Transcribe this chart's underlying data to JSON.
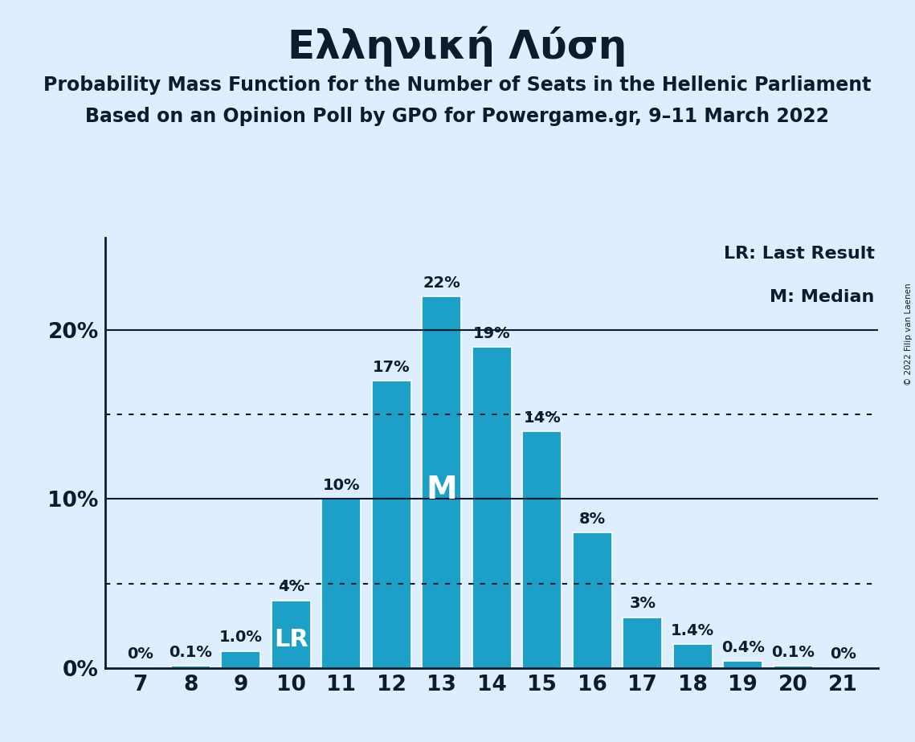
{
  "title": "Ελληνική Λύση",
  "subtitle1": "Probability Mass Function for the Number of Seats in the Hellenic Parliament",
  "subtitle2": "Based on an Opinion Poll by GPO for Powergame.gr, 9–11 March 2022",
  "copyright": "© 2022 Filip van Laenen",
  "legend_lr": "LR: Last Result",
  "legend_m": "M: Median",
  "seats": [
    7,
    8,
    9,
    10,
    11,
    12,
    13,
    14,
    15,
    16,
    17,
    18,
    19,
    20,
    21
  ],
  "probabilities": [
    0.0,
    0.1,
    1.0,
    4.0,
    10.0,
    17.0,
    22.0,
    19.0,
    14.0,
    8.0,
    3.0,
    1.4,
    0.4,
    0.1,
    0.0
  ],
  "bar_color": "#1ca0c8",
  "background_color": "#ddeeff",
  "text_color": "#0d1b2e",
  "ylabel_ticks": [
    0,
    10,
    20
  ],
  "ylabel_labels": [
    "0%",
    "10%",
    "20%"
  ],
  "solid_lines": [
    10.0,
    20.0
  ],
  "dotted_lines": [
    5.0,
    15.0
  ],
  "lr_seat": 10,
  "median_seat": 13,
  "ylim": [
    0,
    25.5
  ],
  "bar_labels": [
    "0%",
    "0.1%",
    "1.0%",
    "4%",
    "10%",
    "17%",
    "22%",
    "19%",
    "14%",
    "8%",
    "3%",
    "1.4%",
    "0.4%",
    "0.1%",
    "0%"
  ],
  "bar_width": 0.78,
  "title_fontsize": 36,
  "subtitle_fontsize": 17,
  "tick_fontsize": 19,
  "bar_label_fontsize": 14,
  "lr_fontsize": 22,
  "m_fontsize": 28,
  "legend_fontsize": 16
}
